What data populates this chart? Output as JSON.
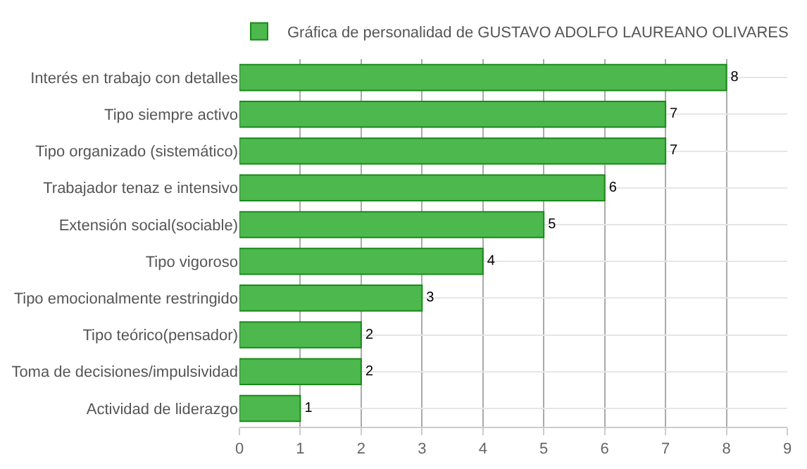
{
  "chart_data": {
    "type": "bar",
    "orientation": "horizontal",
    "categories": [
      "Interés en trabajo con detalles",
      "Tipo siempre activo",
      "Tipo organizado (sistemático)",
      "Trabajador tenaz e intensivo",
      "Extensión social(sociable)",
      "Tipo vigoroso",
      "Tipo emocionalmente restringido",
      "Tipo teórico(pensador)",
      "Toma de decisiones/impulsividad",
      "Actividad de liderazgo"
    ],
    "series": [
      {
        "name": "Gráfica de personalidad de GUSTAVO ADOLFO LAUREANO OLIVARES",
        "color": "#4db84d",
        "values": [
          8,
          7,
          7,
          6,
          5,
          4,
          3,
          2,
          2,
          1
        ]
      }
    ],
    "xlim": [
      0,
      9
    ],
    "xticks": [
      0,
      1,
      2,
      3,
      4,
      5,
      6,
      7,
      8,
      9
    ],
    "grid": true,
    "legend": "top",
    "data_labels": true
  }
}
